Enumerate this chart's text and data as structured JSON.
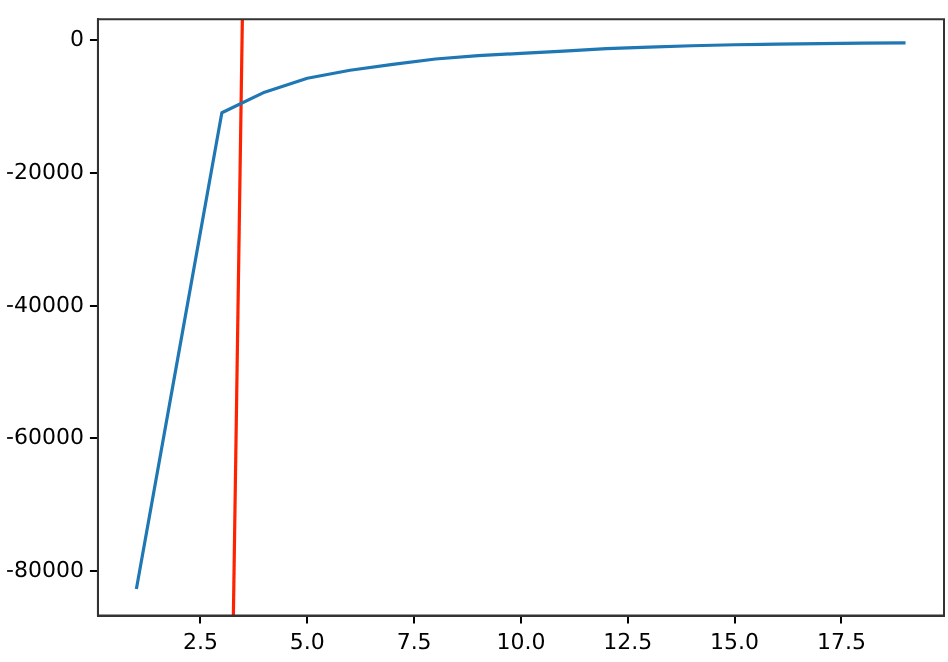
{
  "chart_data": {
    "type": "line",
    "xlim": [
      0.1,
      19.9
    ],
    "ylim": [
      -86700,
      3200
    ],
    "xticks": [
      {
        "value": 2.5,
        "label": "2.5"
      },
      {
        "value": 5,
        "label": "5.0"
      },
      {
        "value": 7.5,
        "label": "7.5"
      },
      {
        "value": 10,
        "label": "10.0"
      },
      {
        "value": 12.5,
        "label": "12.5"
      },
      {
        "value": 15,
        "label": "15.0"
      },
      {
        "value": 17.5,
        "label": "17.5"
      }
    ],
    "yticks": [
      0,
      -20000,
      -40000,
      -60000,
      -80000
    ],
    "grid": false,
    "legend": false,
    "marker": "none",
    "line_style": "solid",
    "series": [
      {
        "color": "#1f77b4",
        "x": [
          1,
          2,
          3,
          4,
          5,
          6,
          7,
          8,
          9,
          10,
          11,
          12,
          13,
          14,
          15,
          16,
          17,
          18,
          19
        ],
        "values": [
          -82700,
          -46800,
          -10900,
          -7800,
          -5700,
          -4500,
          -3600,
          -2800,
          -2300,
          -1950,
          -1600,
          -1250,
          -1000,
          -800,
          -650,
          -550,
          -480,
          -420,
          -380
        ]
      },
      {
        "color": "#ff2200",
        "x": [
          3.27,
          3.48
        ],
        "values": [
          -86700,
          3200
        ]
      }
    ]
  }
}
